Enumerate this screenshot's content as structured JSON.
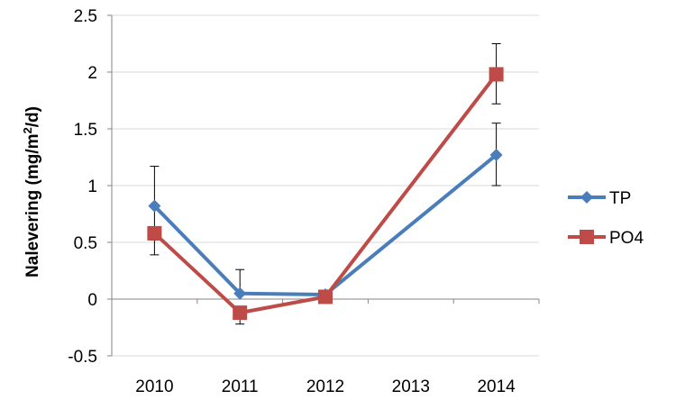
{
  "chart_data": {
    "type": "line",
    "categories": [
      "2010",
      "2011",
      "2012",
      "2013",
      "2014"
    ],
    "ylabel_prefix": "Nalevering (mg/m",
    "ylabel_sup": "2",
    "ylabel_suffix": "/d)",
    "ylim": [
      -0.5,
      2.5
    ],
    "yticks": [
      -0.5,
      0,
      0.5,
      1,
      1.5,
      2,
      2.5
    ],
    "ytick_labels": [
      "-0.5",
      "0",
      "0.5",
      "1",
      "1.5",
      "2",
      "2.5"
    ],
    "grid": true,
    "legend_position": "right",
    "series": [
      {
        "name": "TP",
        "color": "#4a7ebb",
        "marker": "diamond",
        "x": [
          "2010",
          "2011",
          "2012",
          "2014"
        ],
        "values": [
          0.82,
          0.05,
          0.04,
          1.27
        ],
        "err_low": [
          0.3,
          0.0,
          null,
          0.27
        ],
        "err_high": [
          0.35,
          0.21,
          null,
          0.28
        ]
      },
      {
        "name": "PO4",
        "color": "#be4b48",
        "marker": "square",
        "x": [
          "2010",
          "2011",
          "2012",
          "2014"
        ],
        "values": [
          0.58,
          -0.12,
          0.02,
          1.98
        ],
        "err_low": [
          0.19,
          0.1,
          null,
          0.26
        ],
        "err_high": [
          0.0,
          0.0,
          null,
          0.27
        ]
      }
    ]
  }
}
